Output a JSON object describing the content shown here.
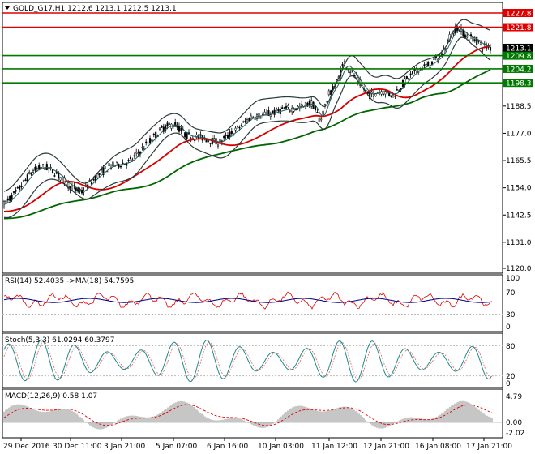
{
  "header": {
    "main": "GOLD_G17,H1  1212.6 1213.1 1212.5 1213.1",
    "rsi": "RSI(14) 52.4035  ->MA(18) 54.7595",
    "stoch": "Stoch(5,3,3) 61.0294 60.3797",
    "macd": "MACD(12,26,9) 0.58 1.07"
  },
  "colors": {
    "support": "#007a00",
    "resistance": "#e00000",
    "price_tag": "#000000",
    "ma_red": "#d40000",
    "ma_green": "#006600",
    "bands": "#2a3a3a",
    "rsi_line": "#e00000",
    "rsi_ma": "#000080",
    "stoch_main": "#1a8a8a",
    "macd_signal": "#e00000",
    "macd_hist": "#a0a0a0"
  },
  "price_scale": {
    "ticks": [
      "1188.5",
      "1177.0",
      "1165.5",
      "1154.0",
      "1142.5",
      "1131.0",
      "1120.0"
    ],
    "tick_values": [
      1188.5,
      1177.0,
      1165.5,
      1154.0,
      1142.5,
      1131.0,
      1120.0
    ]
  },
  "levels": [
    {
      "label": "1227.8",
      "value": 1227.8,
      "kind": "resistance"
    },
    {
      "label": "1221.8",
      "value": 1221.8,
      "kind": "resistance"
    },
    {
      "label": "1213.1",
      "value": 1213.1,
      "kind": "price"
    },
    {
      "label": "1209.8",
      "value": 1209.8,
      "kind": "support"
    },
    {
      "label": "1204.2",
      "value": 1204.2,
      "kind": "support"
    },
    {
      "label": "1198.3",
      "value": 1198.3,
      "kind": "support"
    }
  ],
  "rsi_scale": [
    "100",
    "70",
    "30",
    "0"
  ],
  "stoch_scale": [
    "80",
    "20",
    "0"
  ],
  "macd_scale": [
    "4.79",
    "0.00",
    "-2.02"
  ],
  "time_labels": [
    "29 Dec 2016",
    "30 Dec 11:00",
    "3 Jan 21:00",
    "5 Jan 07:00",
    "6 Jan 16:00",
    "10 Jan 03:00",
    "11 Jan 12:00",
    "12 Jan 21:00",
    "16 Jan 08:00",
    "17 Jan 21:00"
  ]
}
